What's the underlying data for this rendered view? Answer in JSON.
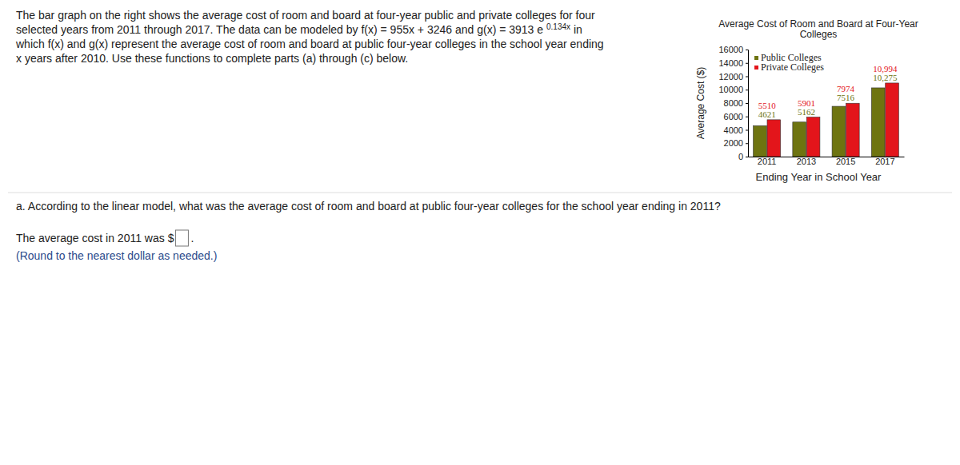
{
  "problem": {
    "lines": [
      "The bar graph on the right shows the average cost of room and board at four-year public and private colleges for four",
      "selected years from 2011 through 2017. The data can be modeled by f(x) = 955x + 3246 and g(x) = 3913 e",
      "which f(x) and g(x) represent the average cost of room and board at public four-year colleges in the school year ending",
      "x years after 2010. Use these functions to complete parts (a) through (c) below."
    ],
    "superscript": "0.134x",
    "superscript_after": "in",
    "part_a": "a. According to the linear model, what was the average cost of room and board at public four-year colleges for the school year ending in 2011?",
    "answer_prefix": "The average cost in 2011 was $",
    "answer_suffix": ".",
    "hint": "(Round to the nearest dollar as needed.)"
  },
  "chart_data": {
    "type": "bar",
    "title": [
      "Average Cost of Room and Board at Four-Year",
      "Colleges"
    ],
    "x_label": "Ending Year in School Year",
    "y_label": "Average Cost ($)",
    "categories": [
      "2011",
      "2013",
      "2015",
      "2017"
    ],
    "series": [
      {
        "name": "Public Colleges",
        "color": "#6e7410",
        "values": [
          4621,
          5162,
          7516,
          10275
        ],
        "value_labels": [
          "4621",
          "5162",
          "7516",
          "10,275"
        ]
      },
      {
        "name": "Private Colleges",
        "color": "#e3151b",
        "values": [
          5510,
          5901,
          7974,
          10994
        ],
        "value_labels": [
          "5510",
          "5901",
          "7974",
          "10,994"
        ]
      }
    ],
    "ylim": [
      0,
      16000
    ],
    "yticks": [
      0,
      2000,
      4000,
      6000,
      8000,
      10000,
      12000,
      14000,
      16000
    ],
    "legend": "upper left",
    "data_labels": true,
    "grid": false
  }
}
